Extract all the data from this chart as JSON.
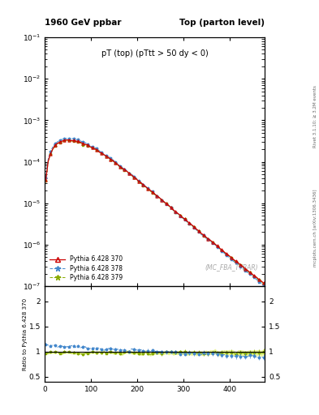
{
  "title_left": "1960 GeV ppbar",
  "title_right": "Top (parton level)",
  "plot_title": "pT (top) (pTtt > 50 dy < 0)",
  "watermark": "(MC_FBA_TTBAR)",
  "right_label_top": "Rivet 3.1.10; ≥ 3.2M events",
  "right_label_bottom": "mcplots.cern.ch [arXiv:1306.3436]",
  "ylabel_ratio": "Ratio to Pythia 6.428 370",
  "ylim_main": [
    1e-07,
    0.1
  ],
  "ylim_ratio": [
    0.4,
    2.3
  ],
  "xlim": [
    0,
    475
  ],
  "legend_entries": [
    "Pythia 6.428 370",
    "Pythia 6.428 378",
    "Pythia 6.428 379"
  ],
  "colors": [
    "#cc0000",
    "#4488cc",
    "#88aa00"
  ],
  "bg_color": "#ffffff"
}
